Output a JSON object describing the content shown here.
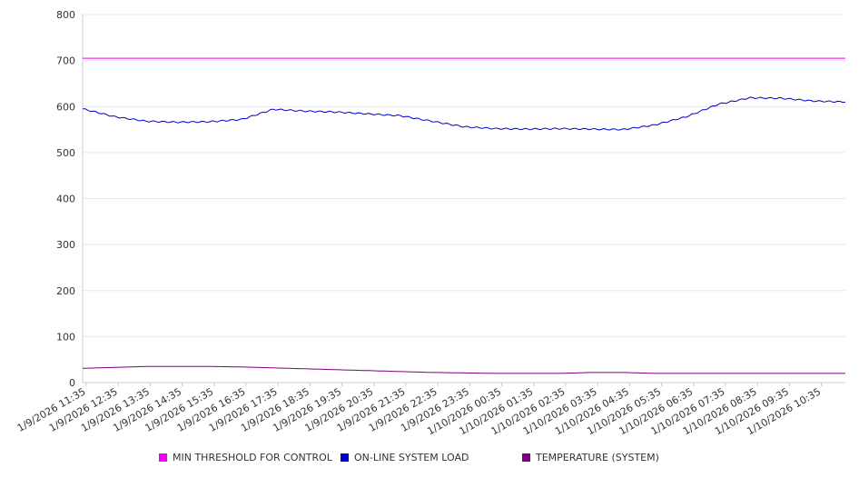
{
  "chart_data": {
    "type": "line",
    "grid": "horizontal",
    "legend_position": "bottom",
    "ylim": [
      0,
      800
    ],
    "y_ticks": [
      "0",
      "100",
      "200",
      "300",
      "400",
      "500",
      "600",
      "700",
      "800"
    ],
    "x_ticks": [
      "1/9/2026 11:35",
      "1/9/2026 12:35",
      "1/9/2026 13:35",
      "1/9/2026 14:35",
      "1/9/2026 15:35",
      "1/9/2026 16:35",
      "1/9/2026 17:35",
      "1/9/2026 18:35",
      "1/9/2026 19:35",
      "1/9/2026 20:35",
      "1/9/2026 21:35",
      "1/9/2026 22:35",
      "1/9/2026 23:35",
      "1/10/2026 00:35",
      "1/10/2026 01:35",
      "1/10/2026 02:35",
      "1/10/2026 03:35",
      "1/10/2026 04:35",
      "1/10/2026 05:35",
      "1/10/2026 06:35",
      "1/10/2026 07:35",
      "1/10/2026 08:35",
      "1/10/2026 09:35",
      "1/10/2026 10:35"
    ],
    "x": [
      "1/9/2026 11:35",
      "1/9/2026 12:35",
      "1/9/2026 13:35",
      "1/9/2026 14:35",
      "1/9/2026 15:35",
      "1/9/2026 16:35",
      "1/9/2026 17:35",
      "1/9/2026 18:35",
      "1/9/2026 19:35",
      "1/9/2026 20:35",
      "1/9/2026 21:35",
      "1/9/2026 22:35",
      "1/9/2026 23:35",
      "1/10/2026 00:35",
      "1/10/2026 01:35",
      "1/10/2026 02:35",
      "1/10/2026 03:35",
      "1/10/2026 04:35",
      "1/10/2026 05:35",
      "1/10/2026 06:35",
      "1/10/2026 07:35",
      "1/10/2026 08:35",
      "1/10/2026 09:35",
      "1/10/2026 10:35",
      "1/10/2026 11:30"
    ],
    "series": [
      {
        "name": "MIN THRESHOLD FOR CONTROL",
        "color": "#ee00ee",
        "values": [
          705,
          705,
          705,
          705,
          705,
          705,
          705,
          705,
          705,
          705,
          705,
          705,
          705,
          705,
          705,
          705,
          705,
          705,
          705,
          705,
          705,
          705,
          705,
          705,
          705
        ]
      },
      {
        "name": "ON-LINE SYSTEM LOAD",
        "color": "#0000cc",
        "values": [
          595,
          578,
          568,
          566,
          567,
          572,
          594,
          590,
          588,
          584,
          580,
          568,
          556,
          552,
          551,
          552,
          551,
          550,
          560,
          578,
          605,
          619,
          618,
          612,
          610
        ]
      },
      {
        "name": "TEMPERATURE (SYSTEM)",
        "color": "#800080",
        "values": [
          31,
          33,
          35,
          35,
          35,
          34,
          32,
          30,
          28,
          26,
          24,
          22,
          21,
          20,
          20,
          20,
          22,
          22,
          20,
          20,
          20,
          20,
          20,
          20,
          20
        ]
      }
    ]
  }
}
